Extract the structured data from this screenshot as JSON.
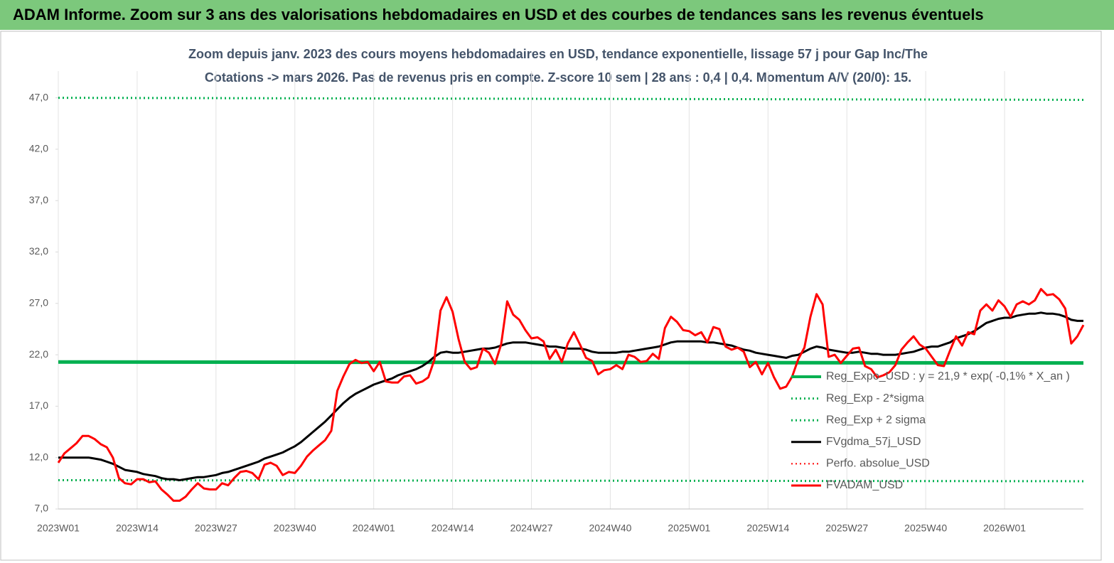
{
  "header": {
    "title": "ADAM Informe. Zoom sur 3 ans des valorisations hebdomadaires en USD et des courbes de tendances sans les revenus éventuels"
  },
  "chart_data": {
    "type": "line",
    "title": [
      "Zoom depuis janv. 2023 des cours moyens hebdomadaires en USD, tendance exponentielle, lissage 57 j pour Gap Inc/The",
      "Cotations -> mars 2026. Pas de revenus pris en compte. Z-score 10 sem  | 28 ans : 0,4 | 0,4. Momentum A/V (20/0): 15."
    ],
    "categories": [
      "2023W01",
      null,
      null,
      null,
      null,
      null,
      null,
      null,
      null,
      null,
      null,
      null,
      null,
      "2023W14",
      null,
      null,
      null,
      null,
      null,
      null,
      null,
      null,
      null,
      null,
      null,
      null,
      "2023W27",
      null,
      null,
      null,
      null,
      null,
      null,
      null,
      null,
      null,
      null,
      null,
      null,
      "2023W40",
      null,
      null,
      null,
      null,
      null,
      null,
      null,
      null,
      null,
      null,
      null,
      null,
      "2024W01",
      null,
      null,
      null,
      null,
      null,
      null,
      null,
      null,
      null,
      null,
      null,
      null,
      "2024W14",
      null,
      null,
      null,
      null,
      null,
      null,
      null,
      null,
      null,
      null,
      null,
      null,
      "2024W27",
      null,
      null,
      null,
      null,
      null,
      null,
      null,
      null,
      null,
      null,
      null,
      null,
      "2024W40",
      null,
      null,
      null,
      null,
      null,
      null,
      null,
      null,
      null,
      null,
      null,
      null,
      "2025W01",
      null,
      null,
      null,
      null,
      null,
      null,
      null,
      null,
      null,
      null,
      null,
      null,
      "2025W14",
      null,
      null,
      null,
      null,
      null,
      null,
      null,
      null,
      null,
      null,
      null,
      null,
      "2025W27",
      null,
      null,
      null,
      null,
      null,
      null,
      null,
      null,
      null,
      null,
      null,
      null,
      "2025W40",
      null,
      null,
      null,
      null,
      null,
      null,
      null,
      null,
      null,
      null,
      null,
      null,
      "2026W01",
      null,
      null,
      null,
      null,
      null,
      null,
      null,
      null,
      null,
      null,
      null,
      null,
      null
    ],
    "series": [
      {
        "name": "Reg_Expo_USD : y = 21,9 * exp( -0,1% *  X_an )",
        "color": "#00b050",
        "dash": "solid",
        "width": 5,
        "start": 21.3,
        "end": 21.2
      },
      {
        "name": "Reg_Exp - 2*sigma",
        "color": "#00b050",
        "dash": "dotted",
        "width": 3,
        "start": 9.8,
        "end": 9.7
      },
      {
        "name": "Reg_Exp + 2 sigma",
        "color": "#00b050",
        "dash": "dotted",
        "width": 3,
        "start": 47.0,
        "end": 46.8
      },
      {
        "name": "FVgdma_57j_USD",
        "color": "#000000",
        "dash": "solid",
        "width": 3,
        "values": [
          12.0,
          12.0,
          12.0,
          12.0,
          12.0,
          12.0,
          11.9,
          11.8,
          11.6,
          11.4,
          11.1,
          10.8,
          10.7,
          10.6,
          10.4,
          10.3,
          10.2,
          10.0,
          9.9,
          9.9,
          9.8,
          9.9,
          10.0,
          10.1,
          10.1,
          10.2,
          10.3,
          10.5,
          10.6,
          10.8,
          11.0,
          11.2,
          11.4,
          11.6,
          11.9,
          12.1,
          12.3,
          12.5,
          12.8,
          13.1,
          13.5,
          14.0,
          14.5,
          15.0,
          15.5,
          16.1,
          16.7,
          17.3,
          17.8,
          18.2,
          18.5,
          18.8,
          19.1,
          19.3,
          19.5,
          19.7,
          20.0,
          20.2,
          20.4,
          20.6,
          20.9,
          21.3,
          21.8,
          22.2,
          22.3,
          22.2,
          22.2,
          22.3,
          22.4,
          22.5,
          22.6,
          22.6,
          22.7,
          22.9,
          23.1,
          23.2,
          23.2,
          23.2,
          23.1,
          23.0,
          22.9,
          22.8,
          22.8,
          22.7,
          22.6,
          22.6,
          22.6,
          22.5,
          22.3,
          22.2,
          22.2,
          22.2,
          22.2,
          22.3,
          22.3,
          22.4,
          22.5,
          22.6,
          22.7,
          22.8,
          23.0,
          23.2,
          23.3,
          23.3,
          23.3,
          23.3,
          23.3,
          23.2,
          23.2,
          23.1,
          23.0,
          22.9,
          22.7,
          22.5,
          22.4,
          22.2,
          22.1,
          22.0,
          21.9,
          21.8,
          21.7,
          21.9,
          22.0,
          22.3,
          22.6,
          22.8,
          22.7,
          22.5,
          22.4,
          22.3,
          22.2,
          22.2,
          22.3,
          22.2,
          22.1,
          22.1,
          22.0,
          22.0,
          22.0,
          22.1,
          22.2,
          22.3,
          22.5,
          22.7,
          22.8,
          22.8,
          23.0,
          23.2,
          23.6,
          23.8,
          24.0,
          24.3,
          24.7,
          25.1,
          25.3,
          25.5,
          25.6,
          25.6,
          25.8,
          25.9,
          26.0,
          26.0,
          26.1,
          26.0,
          26.0,
          25.9,
          25.7,
          25.4,
          25.3,
          25.3
        ]
      },
      {
        "name": "Perfo. absolue_USD",
        "color": "#ff0000",
        "dash": "dotted",
        "width": 2
      },
      {
        "name": "FVADAM_USD",
        "color": "#ff0000",
        "dash": "solid",
        "width": 3,
        "values": [
          11.5,
          12.4,
          12.9,
          13.4,
          14.1,
          14.1,
          13.8,
          13.3,
          13.0,
          12.0,
          10.0,
          9.5,
          9.4,
          9.9,
          9.9,
          9.6,
          9.7,
          8.9,
          8.4,
          7.8,
          7.8,
          8.2,
          8.9,
          9.5,
          9.0,
          8.9,
          8.9,
          9.5,
          9.3,
          10.0,
          10.6,
          10.7,
          10.5,
          9.9,
          11.3,
          11.5,
          11.2,
          10.3,
          10.6,
          10.5,
          11.2,
          12.1,
          12.7,
          13.2,
          13.7,
          14.6,
          18.5,
          19.9,
          21.1,
          21.5,
          21.2,
          21.3,
          20.4,
          21.3,
          19.4,
          19.3,
          19.3,
          19.9,
          20.0,
          19.2,
          19.4,
          19.8,
          21.5,
          26.3,
          27.6,
          26.2,
          23.5,
          21.3,
          20.6,
          20.8,
          22.6,
          22.2,
          21.1,
          23.0,
          27.2,
          25.9,
          25.4,
          24.4,
          23.6,
          23.7,
          23.3,
          21.6,
          22.5,
          21.3,
          23.1,
          24.2,
          23.0,
          21.7,
          21.4,
          20.1,
          20.5,
          20.6,
          21.0,
          20.6,
          22.0,
          21.8,
          21.3,
          21.4,
          22.1,
          21.6,
          24.6,
          25.7,
          25.2,
          24.4,
          24.3,
          23.9,
          24.2,
          23.2,
          24.7,
          24.5,
          22.8,
          22.5,
          22.7,
          22.3,
          20.8,
          21.3,
          20.1,
          21.2,
          19.8,
          18.7,
          18.9,
          19.9,
          21.6,
          22.7,
          25.7,
          27.9,
          26.9,
          21.8,
          22.0,
          21.2,
          21.9,
          22.6,
          22.7,
          20.9,
          20.6,
          19.8,
          20.0,
          20.3,
          21.0,
          22.5,
          23.2,
          23.8,
          23.0,
          22.6,
          21.8,
          21.0,
          20.9,
          22.4,
          23.8,
          22.9,
          24.2,
          24.0,
          26.3,
          26.9,
          26.3,
          27.3,
          26.7,
          25.7,
          26.9,
          27.2,
          26.9,
          27.3,
          28.4,
          27.8,
          27.9,
          27.4,
          26.5,
          23.1,
          23.8,
          24.9
        ]
      }
    ],
    "ylim": [
      7,
      49.6
    ],
    "yticks": [
      {
        "value": 7,
        "label": "7,0"
      },
      {
        "value": 12,
        "label": "12,0"
      },
      {
        "value": 17,
        "label": "17,0"
      },
      {
        "value": 22,
        "label": "22,0"
      },
      {
        "value": 27,
        "label": "27,0"
      },
      {
        "value": 32,
        "label": "32,0"
      },
      {
        "value": 37,
        "label": "37,0"
      },
      {
        "value": 42,
        "label": "42,0"
      },
      {
        "value": 47,
        "label": "47,0"
      }
    ],
    "grid": "x",
    "legend": "right"
  }
}
